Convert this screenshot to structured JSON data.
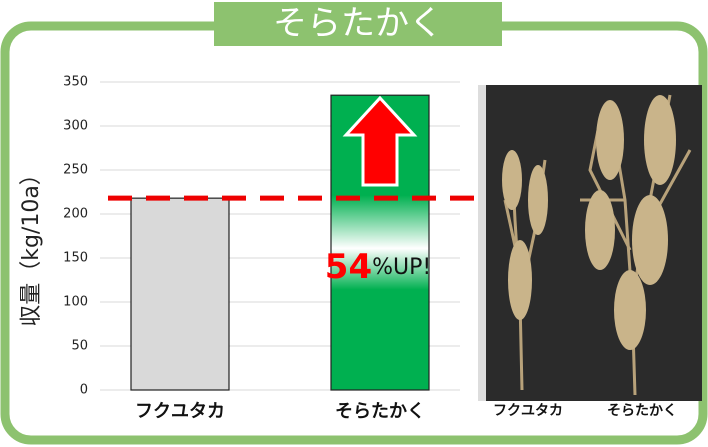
{
  "chart_data": {
    "type": "bar",
    "title": "そらたかく",
    "y_label": "収量（kg/10a）",
    "categories": [
      "フクユタカ",
      "そらたかく"
    ],
    "values": [
      218,
      335
    ],
    "colors": [
      "#d9d9d9",
      "#00b050"
    ],
    "ylim": [
      0,
      350
    ],
    "yticks": [
      0,
      50,
      100,
      150,
      200,
      250,
      300,
      350
    ],
    "grid": true,
    "annotation": {
      "number": "54",
      "text": "%UP!"
    },
    "photo_labels": [
      "フクユタカ",
      "そらたかく"
    ]
  }
}
